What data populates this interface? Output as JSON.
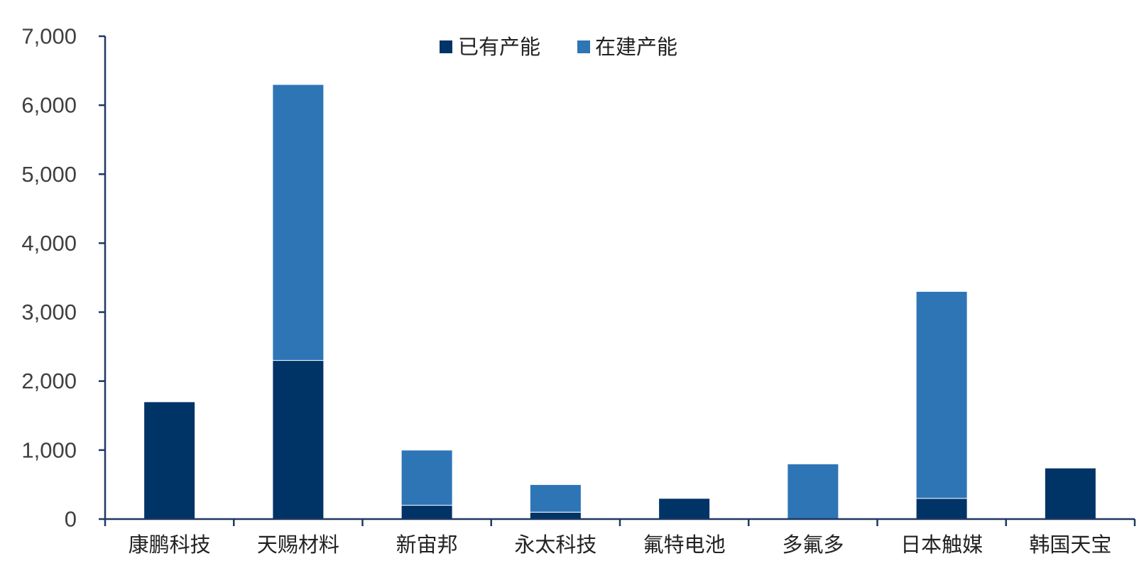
{
  "chart_data": {
    "type": "bar",
    "stacked": true,
    "title": "",
    "xlabel": "",
    "ylabel": "",
    "ylim": [
      0,
      7000
    ],
    "yticks": [
      0,
      1000,
      2000,
      3000,
      4000,
      5000,
      6000,
      7000
    ],
    "ytick_labels": [
      "0",
      "1,000",
      "2,000",
      "3,000",
      "4,000",
      "5,000",
      "6,000",
      "7,000"
    ],
    "grid": false,
    "legend_position": "top-center",
    "categories": [
      "康鹏科技",
      "天赐材料",
      "新宙邦",
      "永太科技",
      "氟特电池",
      "多氟多",
      "日本触媒",
      "韩国天宝"
    ],
    "series": [
      {
        "name": "已有产能",
        "color": "#003366",
        "values": [
          1700,
          2300,
          200,
          100,
          300,
          0,
          300,
          740
        ]
      },
      {
        "name": "在建产能",
        "color": "#2E75B6",
        "values": [
          0,
          4000,
          800,
          400,
          0,
          800,
          3000,
          0
        ]
      }
    ]
  }
}
